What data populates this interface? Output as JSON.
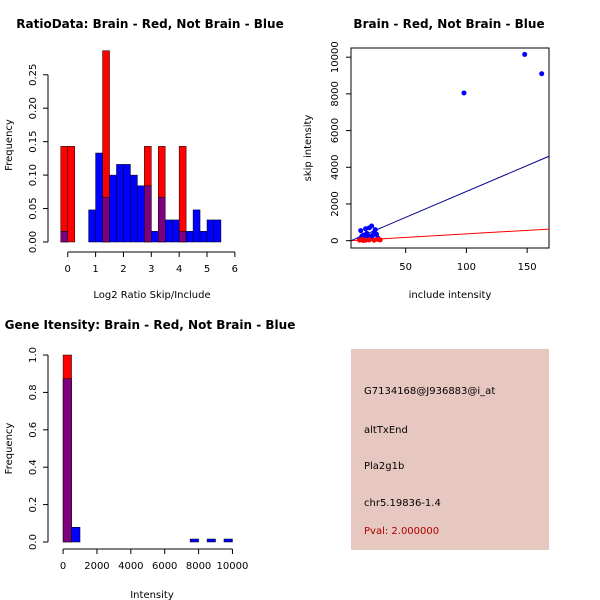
{
  "chart_data": [
    {
      "type": "bar",
      "title": "RatioData: Brain - Red, Not Brain - Blue",
      "xlabel": "Log2 Ratio Skip/Include",
      "ylabel": "Frequency",
      "xlim": [
        -0.35,
        6.4
      ],
      "ylim": [
        0,
        0.29
      ],
      "x_ticks": [
        0,
        1,
        2,
        3,
        4,
        5,
        6
      ],
      "y_ticks": [
        0.0,
        0.05,
        0.1,
        0.15,
        0.2,
        0.25
      ],
      "y_tick_labels": [
        "0.00",
        "0.05",
        "0.10",
        "0.15",
        "0.20",
        "0.25"
      ],
      "bin_width": 0.25,
      "series": [
        {
          "name": "Brain",
          "color": "#ff0000",
          "bins": [
            [
              -0.25,
              0.143
            ],
            [
              0.0,
              0.143
            ],
            [
              1.25,
              0.286
            ],
            [
              2.75,
              0.143
            ],
            [
              3.25,
              0.143
            ],
            [
              4.0,
              0.143
            ]
          ]
        },
        {
          "name": "Not Brain",
          "color": "#0000ff",
          "bins": [
            [
              -0.25,
              0.016
            ],
            [
              0.75,
              0.048
            ],
            [
              1.0,
              0.133
            ],
            [
              1.25,
              0.067
            ],
            [
              1.5,
              0.1
            ],
            [
              1.75,
              0.116
            ],
            [
              2.0,
              0.116
            ],
            [
              2.25,
              0.1
            ],
            [
              2.5,
              0.084
            ],
            [
              2.75,
              0.084
            ],
            [
              3.0,
              0.016
            ],
            [
              3.25,
              0.067
            ],
            [
              3.5,
              0.033
            ],
            [
              3.75,
              0.033
            ],
            [
              4.0,
              0.016
            ],
            [
              4.25,
              0.016
            ],
            [
              4.5,
              0.048
            ],
            [
              4.75,
              0.016
            ],
            [
              5.0,
              0.033
            ],
            [
              5.25,
              0.033
            ]
          ]
        }
      ]
    },
    {
      "type": "scatter",
      "title": "Brain - Red, Not Brain - Blue",
      "xlabel": "include intensity",
      "ylabel": "skip intensity",
      "xlim": [
        5,
        168
      ],
      "ylim": [
        -400,
        10500
      ],
      "x_ticks": [
        50,
        100,
        150
      ],
      "y_ticks": [
        0,
        2000,
        4000,
        6000,
        8000,
        10000
      ],
      "series": [
        {
          "name": "Brain",
          "color": "#ff0000",
          "points": [
            [
              12,
              30
            ],
            [
              14,
              60
            ],
            [
              17,
              20
            ],
            [
              20,
              40
            ],
            [
              24,
              25
            ],
            [
              27,
              70
            ],
            [
              29,
              40
            ],
            [
              15,
              10
            ]
          ],
          "fit_line": [
            [
              5,
              0
            ],
            [
              168,
              630
            ]
          ]
        },
        {
          "name": "Not Brain",
          "color": "#0000ff",
          "points": [
            [
              12,
              100
            ],
            [
              13,
              550
            ],
            [
              15,
              300
            ],
            [
              16,
              200
            ],
            [
              17,
              650
            ],
            [
              18,
              400
            ],
            [
              19,
              150
            ],
            [
              20,
              700
            ],
            [
              21,
              250
            ],
            [
              22,
              800
            ],
            [
              23,
              300
            ],
            [
              24,
              450
            ],
            [
              25,
              600
            ],
            [
              26,
              350
            ],
            [
              27,
              150
            ],
            [
              14,
              250
            ],
            [
              18,
              100
            ],
            [
              22,
              200
            ],
            [
              98,
              8050
            ],
            [
              148,
              10150
            ],
            [
              162,
              9100
            ]
          ],
          "fit_line": [
            [
              5,
              0
            ],
            [
              168,
              4600
            ]
          ]
        }
      ]
    },
    {
      "type": "bar",
      "title": "Gene Itensity: Brain - Red, Not Brain - Blue",
      "xlabel": "Intensity",
      "ylabel": "Frequency",
      "xlim": [
        -300,
        10800
      ],
      "ylim": [
        0,
        1.0
      ],
      "x_ticks": [
        0,
        2000,
        4000,
        6000,
        8000,
        10000
      ],
      "y_ticks": [
        0.0,
        0.2,
        0.4,
        0.6,
        0.8,
        1.0
      ],
      "y_tick_labels": [
        "0.0",
        "0.2",
        "0.4",
        "0.6",
        "0.8",
        "1.0"
      ],
      "bin_width": 500,
      "series": [
        {
          "name": "Brain",
          "color": "#ff0000",
          "bins": [
            [
              0,
              1.0
            ]
          ]
        },
        {
          "name": "Not Brain",
          "color": "#0000ff",
          "bins": [
            [
              0,
              0.873
            ],
            [
              500,
              0.079
            ],
            [
              7500,
              0.016
            ],
            [
              8500,
              0.016
            ],
            [
              9500,
              0.016
            ]
          ]
        }
      ]
    }
  ],
  "info_panel": {
    "probe": "G7134168@J936883@i_at",
    "event_type": "altTxEnd",
    "gene": "Pla2g1b",
    "location": "chr5.19836-1.4",
    "pval": "Pval: 2.000000",
    "bg_color": "#e6c8c0",
    "pval_color": "#b00000"
  }
}
